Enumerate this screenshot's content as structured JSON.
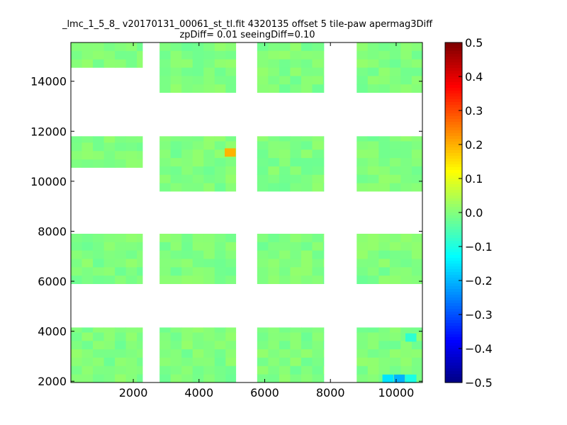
{
  "chart_data": {
    "type": "heatmap",
    "title": "_lmc_1_5_8_ v20170131_00061_st_tl.fit 4320135 offset 5 tile-paw apermag3Diff",
    "subtitle": "zpDiff= 0.01 seeingDiff=0.10",
    "xlabel": "",
    "ylabel": "",
    "xlim": [
      100,
      10800
    ],
    "ylim": [
      1950,
      15550
    ],
    "xticks": [
      2000,
      4000,
      6000,
      8000,
      10000
    ],
    "yticks": [
      2000,
      4000,
      6000,
      8000,
      10000,
      12000,
      14000
    ],
    "colormap": "jet",
    "colorbar": {
      "range": [
        -0.5,
        0.5
      ],
      "ticks": [
        "0.5",
        "0.4",
        "0.3",
        "0.2",
        "0.1",
        "0.0",
        "−0.1",
        "−0.2",
        "−0.3",
        "−0.4",
        "−0.5"
      ]
    },
    "cell_size": [
      335,
      335
    ],
    "typical_value": 0.0,
    "regions": [
      {
        "x": [
          100,
          2280
        ],
        "y": [
          14550,
          15550
        ],
        "value": 0.0
      },
      {
        "x": [
          100,
          2280
        ],
        "y": [
          10550,
          11800
        ],
        "value": 0.0
      },
      {
        "x": [
          100,
          2280
        ],
        "y": [
          5900,
          7900
        ],
        "value": 0.0
      },
      {
        "x": [
          100,
          2280
        ],
        "y": [
          1950,
          4150
        ],
        "value": 0.0
      },
      {
        "x": [
          2800,
          5120
        ],
        "y": [
          13550,
          15550
        ],
        "value": 0.0
      },
      {
        "x": [
          2800,
          5120
        ],
        "y": [
          9600,
          11800
        ],
        "value": 0.0
      },
      {
        "x": [
          2800,
          5120
        ],
        "y": [
          5900,
          7900
        ],
        "value": 0.0
      },
      {
        "x": [
          2800,
          5120
        ],
        "y": [
          1950,
          4150
        ],
        "value": 0.0
      },
      {
        "x": [
          5770,
          7800
        ],
        "y": [
          13550,
          15550
        ],
        "value": 0.0
      },
      {
        "x": [
          5770,
          7800
        ],
        "y": [
          9600,
          11800
        ],
        "value": 0.0
      },
      {
        "x": [
          5770,
          7800
        ],
        "y": [
          5900,
          7900
        ],
        "value": 0.0
      },
      {
        "x": [
          5770,
          7800
        ],
        "y": [
          1950,
          4150
        ],
        "value": 0.0
      },
      {
        "x": [
          8800,
          10800
        ],
        "y": [
          13550,
          15550
        ],
        "value": 0.0
      },
      {
        "x": [
          8800,
          10800
        ],
        "y": [
          9600,
          11800
        ],
        "value": 0.0
      },
      {
        "x": [
          8800,
          10800
        ],
        "y": [
          5900,
          7900
        ],
        "value": 0.0
      },
      {
        "x": [
          8800,
          10800
        ],
        "y": [
          1950,
          4150
        ],
        "value": 0.0
      }
    ],
    "outlier_cells": [
      {
        "x": 4950,
        "y": 11150,
        "value": 0.2
      },
      {
        "x": 9750,
        "y": 2100,
        "value": -0.15
      },
      {
        "x": 10100,
        "y": 2100,
        "value": -0.2
      },
      {
        "x": 10450,
        "y": 2100,
        "value": -0.1
      },
      {
        "x": 10450,
        "y": 3750,
        "value": -0.08
      }
    ]
  }
}
